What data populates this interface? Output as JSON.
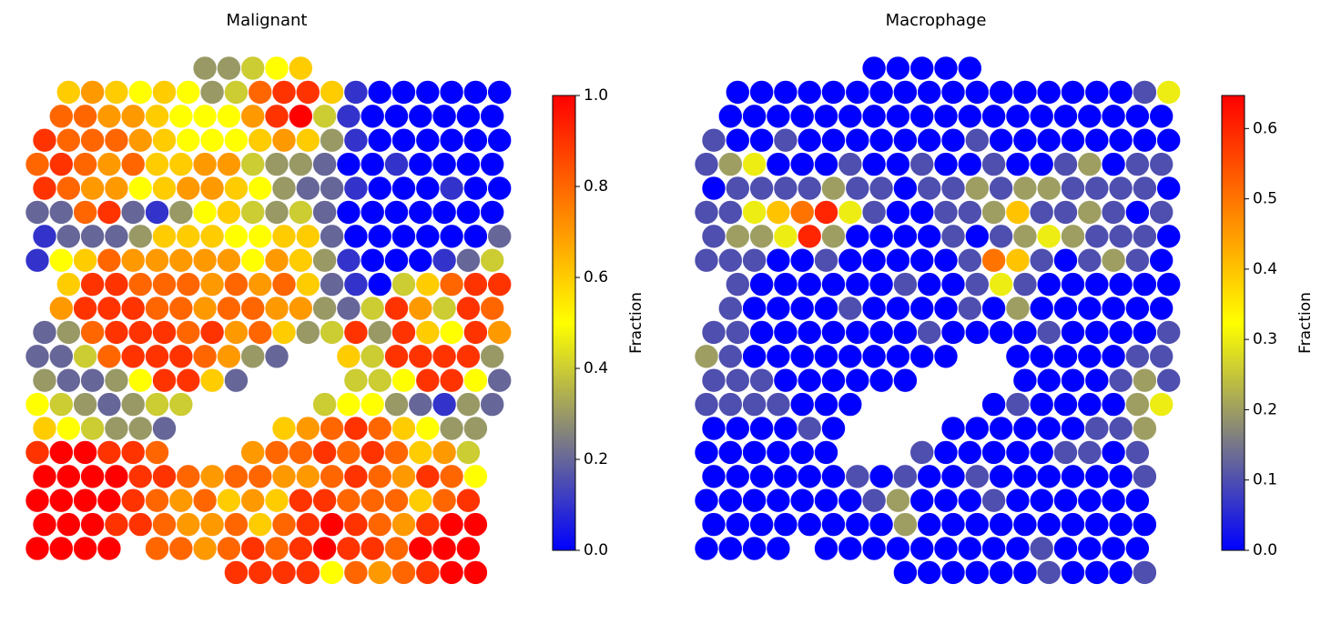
{
  "chart_data": [
    {
      "type": "spatial",
      "title": "Malignant",
      "colorbar_label": "Fraction",
      "colormap": [
        "#0000ff",
        "#808080",
        "#ffff00",
        "#ff8000",
        "#ff0000"
      ],
      "ylim": [
        0,
        1
      ],
      "yticks": [
        {
          "value": 0,
          "label": "0.0"
        },
        0.2,
        0.4,
        0.6,
        0.8,
        {
          "value": 1,
          "label": "1.0"
        }
      ],
      "spots": [
        [
          null,
          null,
          null,
          null,
          null,
          null,
          null,
          0.3,
          0.3,
          0.4,
          0.5,
          0.6,
          null,
          null,
          null,
          null,
          null,
          null,
          null,
          null
        ],
        [
          null,
          0.6,
          0.7,
          0.6,
          0.5,
          0.6,
          0.5,
          0.3,
          0.4,
          0.8,
          0.9,
          0.9,
          0.6,
          0.1,
          0,
          0,
          0,
          0,
          0,
          0
        ],
        [
          null,
          0.8,
          0.8,
          0.7,
          0.7,
          0.6,
          0.5,
          0.5,
          0.5,
          0.7,
          0.9,
          1,
          0.4,
          0.1,
          0,
          0,
          0,
          0,
          0,
          0
        ],
        [
          0.9,
          0.8,
          0.8,
          0.8,
          0.7,
          0.6,
          0.5,
          0.5,
          0.5,
          0.6,
          0.7,
          0.6,
          0.3,
          0.1,
          0,
          0,
          0,
          0,
          0,
          0
        ],
        [
          0.8,
          0.9,
          0.8,
          0.7,
          0.8,
          0.6,
          0.6,
          0.7,
          0.7,
          0.4,
          0.3,
          0.3,
          0.2,
          0,
          0,
          0.1,
          0,
          0,
          0,
          0
        ],
        [
          0.9,
          0.8,
          0.7,
          0.7,
          0.5,
          0.6,
          0.7,
          0.7,
          0.6,
          0.5,
          0.3,
          0.2,
          0.2,
          0.1,
          0,
          0,
          0,
          0.1,
          0,
          0
        ],
        [
          0.2,
          0.2,
          0.8,
          0.9,
          0.2,
          0.1,
          0.3,
          0.5,
          0.6,
          0.4,
          0.3,
          0.4,
          0.2,
          0,
          0,
          0,
          0,
          0,
          0,
          0
        ],
        [
          0.1,
          0.2,
          0.2,
          0.2,
          0.3,
          0.6,
          0.6,
          0.6,
          0.5,
          0.5,
          0.6,
          0.6,
          0.2,
          0,
          0,
          0,
          0,
          0,
          0,
          0.2
        ],
        [
          0.1,
          0.5,
          0.6,
          0.8,
          0.7,
          0.7,
          0.7,
          0.7,
          0.7,
          0.5,
          0.7,
          0.6,
          0.3,
          0.1,
          0,
          0,
          0,
          0.1,
          0.2,
          0.4
        ],
        [
          null,
          0.6,
          0.9,
          0.9,
          0.8,
          0.8,
          0.8,
          0.7,
          0.8,
          0.7,
          0.8,
          0.6,
          0.2,
          0.1,
          0,
          0.4,
          0.6,
          0.8,
          0.9,
          0.9
        ],
        [
          null,
          0.7,
          0.9,
          0.9,
          0.9,
          0.8,
          0.8,
          0.7,
          0.8,
          0.8,
          0.7,
          0.7,
          0.3,
          0.2,
          0.4,
          0.9,
          0.7,
          0.4,
          0.9,
          0.8
        ],
        [
          0.2,
          0.3,
          0.8,
          0.9,
          0.9,
          0.9,
          0.8,
          0.9,
          0.7,
          0.8,
          0.6,
          0.3,
          0.4,
          0.9,
          0.3,
          0.9,
          0.6,
          0.5,
          0.9,
          0.7
        ],
        [
          0.2,
          0.2,
          0.4,
          0.8,
          0.9,
          0.9,
          0.9,
          0.8,
          0.7,
          0.3,
          0.2,
          null,
          null,
          0.6,
          0.4,
          0.9,
          0.9,
          0.9,
          0.9,
          0.3
        ],
        [
          0.3,
          0.2,
          0.2,
          0.3,
          0.5,
          0.9,
          0.9,
          0.6,
          0.2,
          null,
          null,
          null,
          null,
          0.4,
          0.4,
          0.5,
          0.9,
          0.9,
          0.5,
          0.2
        ],
        [
          0.5,
          0.4,
          0.3,
          0.2,
          0.3,
          0.4,
          0.4,
          null,
          null,
          null,
          null,
          null,
          0.4,
          0.5,
          0.5,
          0.3,
          0.2,
          0.1,
          0.3,
          0.2
        ],
        [
          0.6,
          0.5,
          0.4,
          0.3,
          0.3,
          0.2,
          null,
          null,
          null,
          null,
          0.6,
          0.7,
          0.8,
          0.9,
          0.8,
          0.6,
          0.5,
          0.3,
          0.3,
          null
        ],
        [
          0.9,
          1,
          1,
          0.9,
          0.9,
          0.8,
          null,
          null,
          null,
          0.7,
          0.8,
          0.8,
          0.9,
          0.8,
          0.9,
          0.8,
          0.6,
          0.7,
          0.4,
          null
        ],
        [
          1,
          1,
          1,
          1,
          0.9,
          0.9,
          0.8,
          0.7,
          0.8,
          0.8,
          0.7,
          0.7,
          0.8,
          0.9,
          0.8,
          0.7,
          0.9,
          0.8,
          0.5,
          null
        ],
        [
          1,
          1,
          1,
          1,
          0.9,
          0.8,
          0.7,
          0.8,
          0.6,
          0.7,
          0.6,
          0.9,
          0.9,
          0.8,
          0.8,
          0.8,
          0.6,
          0.8,
          0.9,
          null
        ],
        [
          1,
          1,
          1,
          0.9,
          0.9,
          0.8,
          0.7,
          0.7,
          0.8,
          0.6,
          0.8,
          0.9,
          1,
          0.9,
          0.8,
          0.7,
          0.9,
          1,
          1,
          null
        ],
        [
          1,
          1,
          1,
          1,
          null,
          0.8,
          0.8,
          0.7,
          0.8,
          0.9,
          0.8,
          0.9,
          1,
          0.9,
          0.9,
          0.8,
          1,
          1,
          1,
          null
        ],
        [
          null,
          null,
          null,
          null,
          null,
          null,
          null,
          null,
          0.9,
          0.9,
          0.9,
          0.9,
          0.5,
          0.8,
          0.7,
          0.8,
          0.9,
          1,
          1,
          null
        ]
      ]
    },
    {
      "type": "spatial",
      "title": "Macrophage",
      "colorbar_label": "Fraction",
      "colormap": [
        "#0000ff",
        "#808080",
        "#ffff00",
        "#ff8000",
        "#ff0000"
      ],
      "ylim": [
        0,
        0.647
      ],
      "yticks": [
        {
          "value": 0,
          "label": "0.0"
        },
        0.1,
        0.2,
        0.3,
        0.4,
        0.5,
        0.6
      ],
      "spots": [
        [
          null,
          null,
          null,
          null,
          null,
          null,
          null,
          0,
          0,
          0,
          0,
          0,
          null,
          null,
          null,
          null,
          null,
          null,
          null,
          null
        ],
        [
          null,
          0,
          0,
          0,
          0,
          0,
          0,
          0,
          0,
          0,
          0,
          0,
          0,
          0,
          0,
          0,
          0,
          0,
          0.1,
          0.3
        ],
        [
          null,
          0,
          0,
          0,
          0,
          0,
          0,
          0,
          0,
          0,
          0,
          0,
          0,
          0,
          0,
          0,
          0,
          0,
          0,
          0
        ],
        [
          0.1,
          0,
          0,
          0.1,
          0,
          0,
          0,
          0,
          0,
          0,
          0,
          0.1,
          0,
          0,
          0,
          0,
          0,
          0,
          0,
          0
        ],
        [
          0.1,
          0.2,
          0.3,
          0,
          0,
          0,
          0.1,
          0,
          0,
          0.1,
          0,
          0,
          0.1,
          0,
          0,
          0.1,
          0.2,
          0,
          0.1,
          0.1
        ],
        [
          0,
          0.1,
          0.1,
          0.1,
          0.1,
          0.2,
          0.1,
          0.1,
          0,
          0.1,
          0.1,
          0.2,
          0.1,
          0.2,
          0.2,
          0.1,
          0.1,
          0.1,
          0.1,
          0
        ],
        [
          0.1,
          0.1,
          0.3,
          0.4,
          0.5,
          0.6,
          0.3,
          0.1,
          0,
          0,
          0.1,
          0.1,
          0.2,
          0.4,
          0.1,
          0.1,
          0.2,
          0.1,
          0,
          0.1
        ],
        [
          0.1,
          0.2,
          0.2,
          0.3,
          0.6,
          0.2,
          0,
          0,
          0,
          0,
          0.1,
          0,
          0.1,
          0.2,
          0.3,
          0.2,
          0.1,
          0.1,
          0.1,
          0
        ],
        [
          0.1,
          0.1,
          0.1,
          0,
          0,
          0.1,
          0,
          0,
          0,
          0,
          0,
          0.1,
          0.5,
          0.4,
          0.1,
          0,
          0.1,
          0.2,
          0.1,
          0
        ],
        [
          null,
          0.1,
          0,
          0,
          0,
          0,
          0,
          0,
          0.1,
          0,
          0,
          0.1,
          0.3,
          0.1,
          0,
          0,
          0,
          0,
          0,
          0
        ],
        [
          null,
          0.1,
          0,
          0,
          0,
          0,
          0.1,
          0,
          0,
          0,
          0,
          0.1,
          0,
          0.2,
          0,
          0,
          0,
          0,
          0,
          0
        ],
        [
          0.1,
          0.1,
          0,
          0,
          0,
          0,
          0,
          0,
          0,
          0.1,
          0,
          0,
          0,
          0,
          0.1,
          0,
          0,
          0,
          0,
          0.1
        ],
        [
          0.2,
          0.1,
          0,
          0,
          0,
          0,
          0,
          0,
          0,
          0,
          0,
          null,
          null,
          0,
          0,
          0,
          0,
          0,
          0.1,
          0.1
        ],
        [
          0.1,
          0.1,
          0.1,
          0,
          0,
          0,
          0,
          0,
          0,
          null,
          null,
          null,
          null,
          0,
          0,
          0,
          0,
          0.1,
          0.2,
          0.1
        ],
        [
          0.1,
          0.1,
          0.1,
          0.1,
          0,
          0,
          0,
          null,
          null,
          null,
          null,
          null,
          0,
          0.1,
          0,
          0,
          0,
          0,
          0.2,
          0.3
        ],
        [
          0,
          0,
          0,
          0,
          0.1,
          0,
          null,
          null,
          null,
          null,
          0,
          0,
          0,
          0,
          0,
          0,
          0.1,
          0.1,
          0.2,
          null
        ],
        [
          0,
          0,
          0,
          0,
          0,
          0,
          null,
          null,
          null,
          0.1,
          0,
          0,
          0,
          0,
          0,
          0.1,
          0.1,
          0,
          0.1,
          null
        ],
        [
          0,
          0,
          0,
          0,
          0,
          0,
          0.1,
          0,
          0.1,
          0,
          0,
          0.1,
          0,
          0,
          0,
          0,
          0,
          0,
          0.1,
          null
        ],
        [
          0,
          0,
          0,
          0,
          0,
          0,
          0,
          0.1,
          0.2,
          0,
          0,
          0,
          0.1,
          0,
          0,
          0,
          0,
          0,
          0,
          null
        ],
        [
          0,
          0,
          0,
          0,
          0,
          0,
          0,
          0,
          0.2,
          0,
          0,
          0,
          0,
          0,
          0,
          0,
          0,
          0,
          0,
          null
        ],
        [
          0,
          0,
          0,
          0,
          null,
          0,
          0,
          0,
          0,
          0,
          0,
          0,
          0,
          0,
          0.1,
          0,
          0,
          0,
          0,
          null
        ],
        [
          null,
          null,
          null,
          null,
          null,
          null,
          null,
          null,
          0,
          0,
          0,
          0,
          0,
          0,
          0.1,
          0,
          0,
          0,
          0.1,
          null
        ]
      ]
    }
  ]
}
